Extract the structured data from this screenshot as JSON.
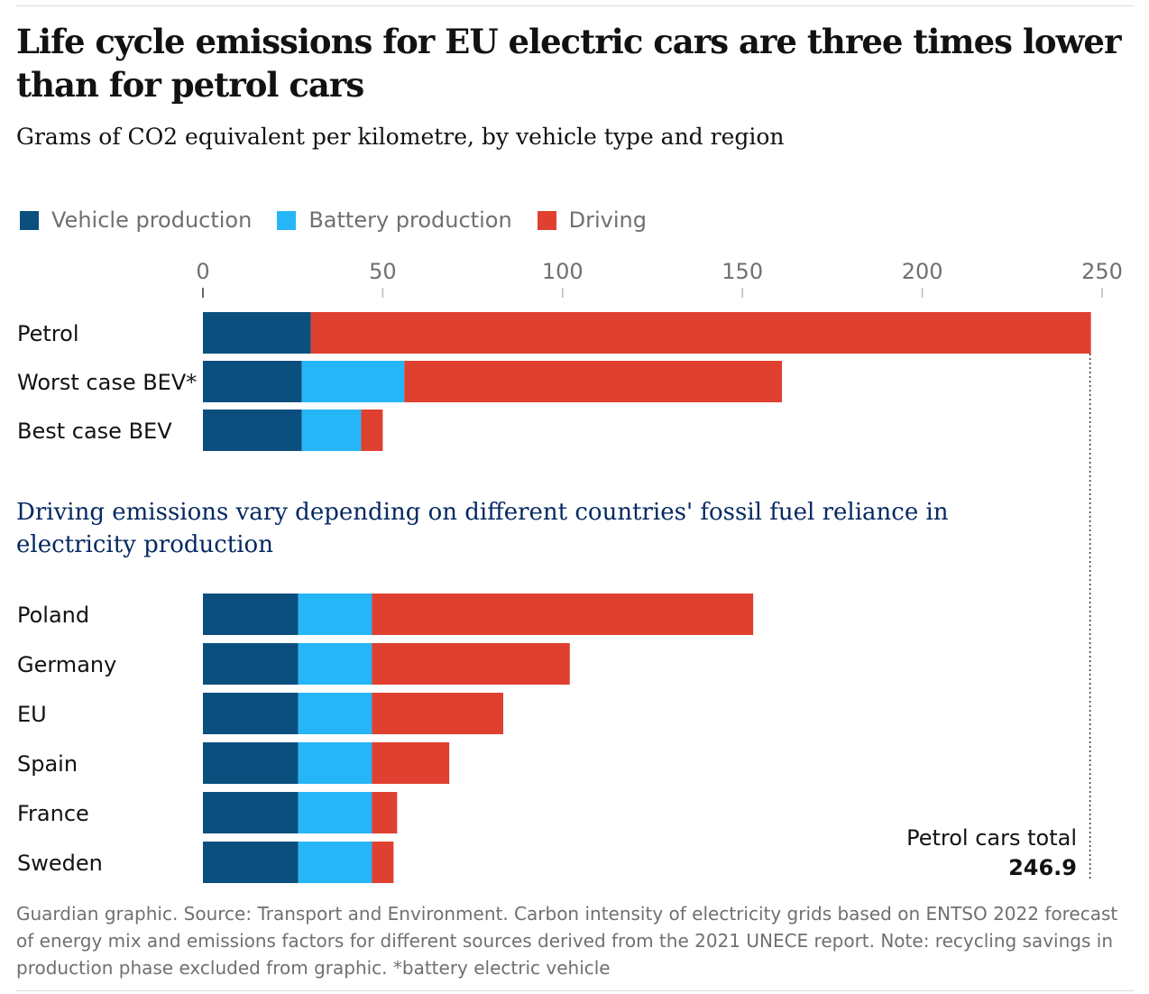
{
  "header": {
    "title": "Life cycle emissions for EU electric cars are three times lower than for petrol cars",
    "subtitle": "Grams of CO2 equivalent per kilometre, by vehicle type and region"
  },
  "legend": [
    {
      "label": "Vehicle production",
      "color": "#0b4f7f"
    },
    {
      "label": "Battery production",
      "color": "#26b5f7"
    },
    {
      "label": "Driving",
      "color": "#e0402f"
    }
  ],
  "section_heading": "Driving emissions vary depending on different countries' fossil fuel reliance in electricity production",
  "annotation": {
    "label": "Petrol cars total",
    "value": "246.9"
  },
  "footer": "Guardian graphic. Source: Transport and Environment. Carbon intensity of electricity grids based on ENTSO 2022 forecast of energy mix and emissions factors for different sources derived from the 2021 UNECE report. Note: recycling savings in production phase excluded from graphic. *battery electric vehicle",
  "chart_data": {
    "type": "bar",
    "orientation": "horizontal",
    "stacked": true,
    "xlim": [
      0,
      250
    ],
    "ticks": [
      0,
      50,
      100,
      150,
      200,
      250
    ],
    "series_names": [
      "Vehicle production",
      "Battery production",
      "Driving"
    ],
    "groups": [
      {
        "heading": "",
        "categories": [
          "Petrol",
          "Worst case BEV*",
          "Best case BEV"
        ],
        "series": [
          {
            "name": "Vehicle production",
            "values": [
              30,
              27.5,
              27.5
            ]
          },
          {
            "name": "Battery production",
            "values": [
              0,
              28.5,
              16.5
            ]
          },
          {
            "name": "Driving",
            "values": [
              216.9,
              105,
              6
            ]
          }
        ]
      },
      {
        "heading": "Driving emissions vary depending on different countries' fossil fuel reliance in electricity production",
        "categories": [
          "Poland",
          "Germany",
          "EU",
          "Spain",
          "France",
          "Sweden"
        ],
        "series": [
          {
            "name": "Vehicle production",
            "values": [
              26.5,
              26.5,
              26.5,
              26.5,
              26.5,
              26.5
            ]
          },
          {
            "name": "Battery production",
            "values": [
              20.5,
              20.5,
              20.5,
              20.5,
              20.5,
              20.5
            ]
          },
          {
            "name": "Driving",
            "values": [
              106,
              55,
              36.5,
              21.5,
              7,
              6
            ]
          }
        ]
      }
    ],
    "reference_line": {
      "value": 246.9,
      "label": "Petrol cars total"
    }
  }
}
